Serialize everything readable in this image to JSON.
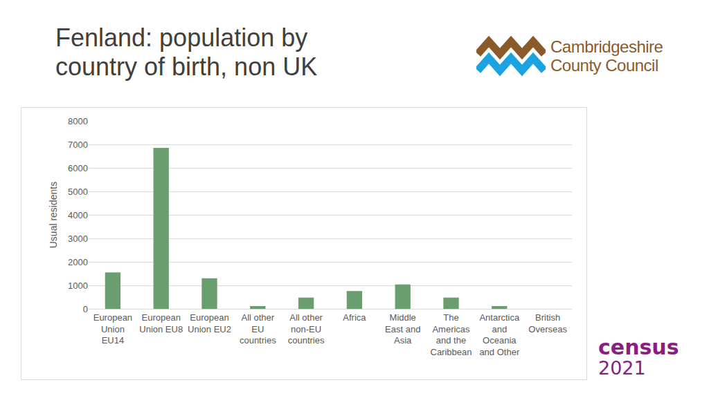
{
  "chart_data": {
    "type": "bar",
    "title": "Fenland: population by country of birth, non UK",
    "y_label": "Usual residents",
    "categories": [
      "European Union EU14",
      "European Union EU8",
      "European Union EU2",
      "All other EU countries",
      "All other non-EU countries",
      "Africa",
      "Middle East and Asia",
      "The Americas and the Caribbean",
      "Antarctica and Oceania and Other",
      "British Overseas"
    ],
    "values": [
      1550,
      6850,
      1300,
      120,
      480,
      760,
      1040,
      480,
      120,
      0
    ],
    "color": "#6a9e6f",
    "ylim": [
      0,
      8000
    ],
    "yticks": [
      0,
      1000,
      2000,
      3000,
      4000,
      5000,
      6000,
      7000,
      8000
    ],
    "grid": true,
    "annotations": [
      "Cambridgeshire",
      "County Council",
      "census",
      "2021"
    ]
  }
}
